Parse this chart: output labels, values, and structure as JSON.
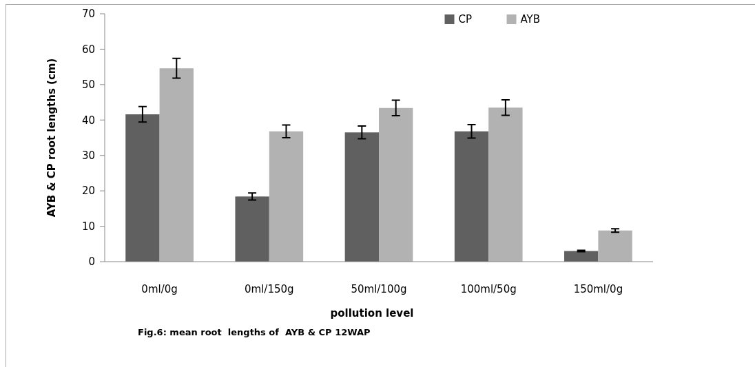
{
  "chart_data": {
    "type": "bar",
    "title": "Fig.6: mean root  lengths of  AYB & CP 12WAP",
    "xlabel": "pollution level",
    "ylabel": "AYB & CP root lengths (cm)",
    "categories": [
      "0ml/0g",
      "0ml/150g",
      "50ml/100g",
      "100ml/50g",
      "150ml/0g"
    ],
    "series": [
      {
        "name": "CP",
        "color": "#606060",
        "values": [
          41.6,
          18.4,
          36.5,
          36.8,
          3.0
        ],
        "errors": [
          2.2,
          1.0,
          1.8,
          1.9,
          0.2
        ]
      },
      {
        "name": "AYB",
        "color": "#b2b2b2",
        "values": [
          54.6,
          36.8,
          43.4,
          43.5,
          8.8
        ],
        "errors": [
          2.8,
          1.8,
          2.2,
          2.2,
          0.5
        ]
      }
    ],
    "ylim": [
      0,
      70
    ],
    "yticks": [
      0,
      10,
      20,
      30,
      40,
      50,
      60,
      70
    ],
    "grid": false,
    "legend": "top right"
  }
}
